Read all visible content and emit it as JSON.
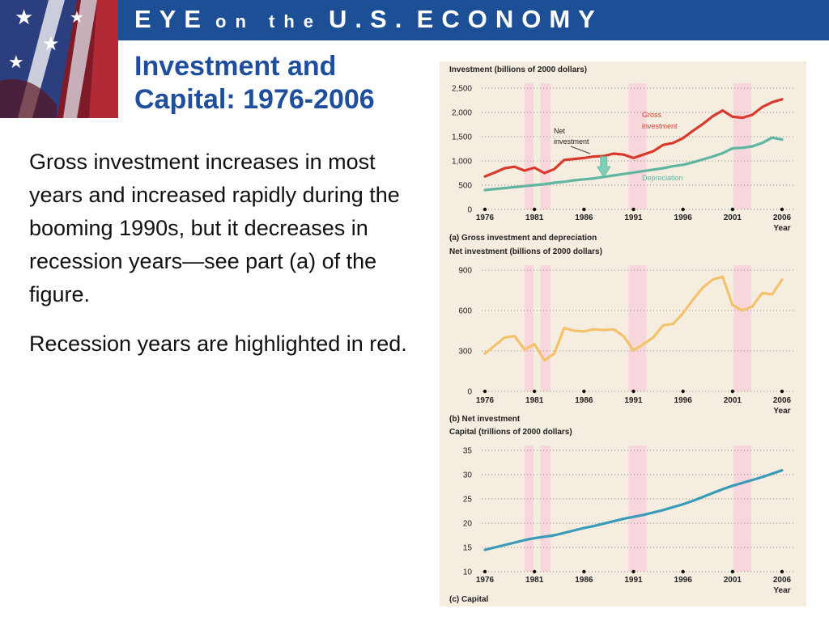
{
  "header": {
    "banner": {
      "w1": "EYE",
      "w2": "on the",
      "w3": "U.S.",
      "w4": "ECONOMY"
    },
    "title_line1": "Investment and",
    "title_line2": "Capital: 1976-2006"
  },
  "body": {
    "paragraph1": "Gross investment increases in most years and increased rapidly during the booming 1990s, but it decreases in recession years—see part (a) of the figure.",
    "paragraph2": "Recession years are highlighted in red."
  },
  "colors": {
    "banner_blue": "#1d4f97",
    "title_blue": "#1f4f9c",
    "figure_bg": "#f5ede0",
    "recession_band": "#f7d6dc",
    "gross": "#d93a2b",
    "depreciation": "#5fb5a0",
    "net": "#f4c26b",
    "capital": "#3a9bb8"
  },
  "x_ticks": [
    "1976",
    "1981",
    "1986",
    "1991",
    "1996",
    "2001",
    "2006"
  ],
  "x_axis_label": "Year",
  "recession_bands": [
    [
      1980.0,
      1980.9
    ],
    [
      1981.6,
      1982.6
    ],
    [
      1990.5,
      1992.3
    ],
    [
      2001.1,
      2002.9
    ]
  ],
  "chart_data": [
    {
      "type": "line",
      "ylabel": "Investment (billions of 2000 dollars)",
      "caption": "(a) Gross investment and depreciation",
      "ylim": [
        0,
        2500
      ],
      "yticks": [
        0,
        500,
        1000,
        1500,
        2000,
        2500
      ],
      "ytick_labels": [
        "0",
        "500",
        "1,000",
        "1,500",
        "2,000",
        "2,500"
      ],
      "xlabel": "Year",
      "grid": true,
      "x": [
        1976,
        1977,
        1978,
        1979,
        1980,
        1981,
        1982,
        1983,
        1984,
        1985,
        1986,
        1987,
        1988,
        1989,
        1990,
        1991,
        1992,
        1993,
        1994,
        1995,
        1996,
        1997,
        1998,
        1999,
        2000,
        2001,
        2002,
        2003,
        2004,
        2005,
        2006
      ],
      "series": [
        {
          "name": "Gross investment",
          "values": [
            680,
            760,
            850,
            880,
            800,
            860,
            750,
            830,
            1020,
            1040,
            1060,
            1090,
            1100,
            1150,
            1130,
            1060,
            1130,
            1200,
            1330,
            1370,
            1470,
            1620,
            1760,
            1920,
            2040,
            1910,
            1890,
            1950,
            2110,
            2210,
            2270
          ]
        },
        {
          "name": "Depreciation",
          "values": [
            400,
            420,
            440,
            460,
            480,
            500,
            520,
            550,
            570,
            600,
            620,
            640,
            670,
            700,
            730,
            760,
            790,
            820,
            850,
            890,
            920,
            970,
            1030,
            1090,
            1160,
            1260,
            1270,
            1300,
            1370,
            1480,
            1440
          ]
        }
      ],
      "annotations": [
        {
          "text_line1": "Gross",
          "text_line2": "investment",
          "x": 2000,
          "y": 1850
        },
        {
          "text_line1": "Net",
          "text_line2": "investment",
          "x": 1988,
          "y": 1000
        },
        {
          "text_line1": "Depreciation",
          "x": 1996,
          "y": 700
        }
      ]
    },
    {
      "type": "line",
      "ylabel": "Net investment (billions of 2000 dollars)",
      "caption": "(b) Net investment",
      "ylim": [
        0,
        900
      ],
      "yticks": [
        0,
        300,
        600,
        900
      ],
      "ytick_labels": [
        "0",
        "300",
        "600",
        "900"
      ],
      "xlabel": "Year",
      "grid": true,
      "x": [
        1976,
        1977,
        1978,
        1979,
        1980,
        1981,
        1982,
        1983,
        1984,
        1985,
        1986,
        1987,
        1988,
        1989,
        1990,
        1991,
        1992,
        1993,
        1994,
        1995,
        1996,
        1997,
        1998,
        1999,
        2000,
        2001,
        2002,
        2003,
        2004,
        2005,
        2006
      ],
      "series": [
        {
          "name": "Net investment",
          "values": [
            280,
            340,
            400,
            410,
            310,
            350,
            230,
            280,
            470,
            450,
            445,
            460,
            455,
            460,
            410,
            305,
            350,
            400,
            490,
            500,
            580,
            680,
            770,
            830,
            850,
            640,
            600,
            630,
            730,
            720,
            830
          ]
        }
      ]
    },
    {
      "type": "line",
      "ylabel": "Capital (trillions of 2000 dollars)",
      "caption": "(c) Capital",
      "ylim": [
        10,
        35
      ],
      "yticks": [
        10,
        15,
        20,
        25,
        30,
        35
      ],
      "ytick_labels": [
        "10",
        "15",
        "20",
        "25",
        "30",
        "35"
      ],
      "xlabel": "Year",
      "grid": true,
      "x": [
        1976,
        1977,
        1978,
        1979,
        1980,
        1981,
        1982,
        1983,
        1984,
        1985,
        1986,
        1987,
        1988,
        1989,
        1990,
        1991,
        1992,
        1993,
        1994,
        1995,
        1996,
        1997,
        1998,
        1999,
        2000,
        2001,
        2002,
        2003,
        2004,
        2005,
        2006
      ],
      "series": [
        {
          "name": "Capital",
          "values": [
            14.5,
            15.0,
            15.5,
            16.0,
            16.5,
            16.9,
            17.2,
            17.5,
            18.0,
            18.5,
            19.0,
            19.4,
            19.9,
            20.4,
            20.9,
            21.3,
            21.7,
            22.2,
            22.7,
            23.3,
            23.9,
            24.6,
            25.4,
            26.2,
            27.0,
            27.7,
            28.3,
            28.9,
            29.5,
            30.2,
            30.9
          ]
        }
      ]
    }
  ]
}
